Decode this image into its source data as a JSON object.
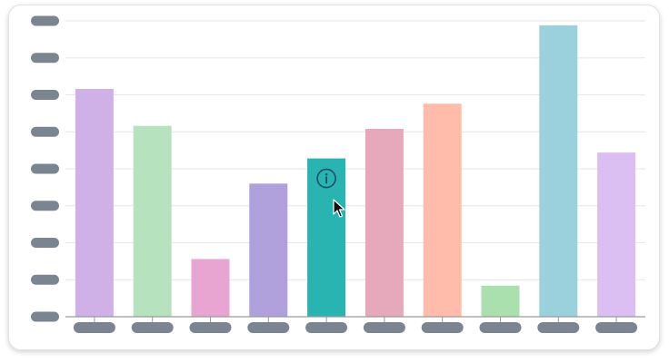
{
  "colors": {
    "grid": "#e6e6e6",
    "axis": "#9a9a9a",
    "placeholder": "#7b8591",
    "info_icon": "#1b4f6b"
  },
  "chart_data": {
    "type": "bar",
    "categories": [
      "",
      "",
      "",
      "",
      "",
      "",
      "",
      "",
      "",
      ""
    ],
    "values": [
      77,
      64.5,
      19.5,
      45,
      53.5,
      63.5,
      72,
      10.5,
      98.5,
      55.5
    ],
    "colors": [
      "#cfb1e8",
      "#b6e2bd",
      "#e8a5d2",
      "#b0a0dc",
      "#2ab4b1",
      "#e5a9bb",
      "#ffbcab",
      "#a9e0ad",
      "#9bd0dd",
      "#dbbff2"
    ],
    "ylim": [
      0,
      100
    ],
    "y_ticks": [
      0,
      12.5,
      25,
      37.5,
      50,
      62.5,
      75,
      87.5,
      100
    ],
    "grid": true,
    "title": "",
    "xlabel": "",
    "ylabel": "",
    "hovered_index": 4,
    "hover_icon": "info-icon",
    "tick_labels_redacted": true
  },
  "cursor_icon": "pointer-arrow-icon"
}
